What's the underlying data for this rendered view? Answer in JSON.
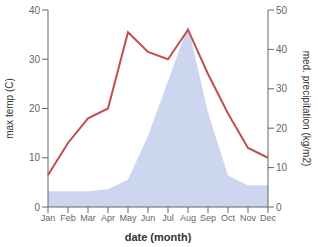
{
  "chart_data": {
    "type": "line",
    "x_label": "date (month)",
    "y_label": "max temp (C)",
    "y2_label": "med. precipitation (kg/m2)",
    "categories": [
      "Jan",
      "Feb",
      "Mar",
      "Apr",
      "May",
      "Jun",
      "Jul",
      "Aug",
      "Sep",
      "Oct",
      "Nov",
      "Dec"
    ],
    "series": [
      {
        "type": "area",
        "axis": "y2",
        "color": "#b8c4e8",
        "values": [
          4,
          4,
          4,
          4.5,
          7,
          18,
          32,
          46,
          24,
          8,
          5.5,
          5.5
        ]
      },
      {
        "type": "line",
        "color": "#c0504d",
        "values": [
          6.5,
          13,
          18,
          20,
          35.5,
          31.5,
          30,
          36,
          27,
          19,
          12,
          10
        ]
      }
    ],
    "ylim": [
      0,
      40
    ],
    "yticks": [
      0,
      10,
      20,
      30,
      40
    ],
    "y2lim": [
      0,
      50
    ],
    "y2ticks": [
      0,
      10,
      20,
      30,
      40,
      50
    ],
    "grid": false
  }
}
